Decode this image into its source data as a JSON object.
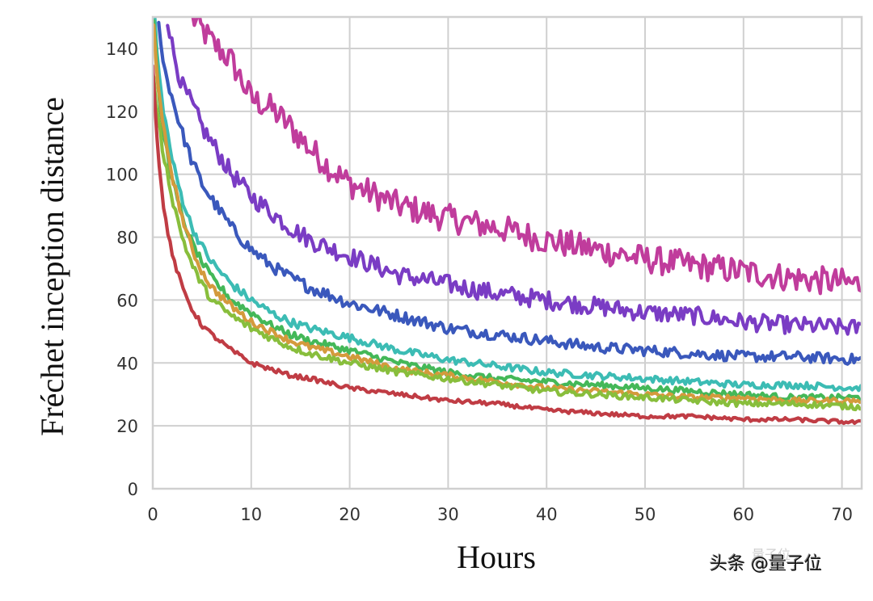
{
  "chart_data": {
    "type": "line",
    "title": "",
    "xlabel": "Hours",
    "ylabel": "Fréchet inception distance",
    "xlim": [
      0,
      72
    ],
    "ylim": [
      0,
      150
    ],
    "xticks": [
      0,
      10,
      20,
      30,
      40,
      50,
      60,
      70
    ],
    "yticks": [
      0,
      20,
      40,
      60,
      80,
      100,
      120,
      140
    ],
    "grid": true,
    "legend": "none",
    "series": [
      {
        "name": "series-magenta",
        "color": "#c03c9c",
        "noise": 4.5,
        "x": [
          4,
          6,
          8,
          10,
          12,
          14,
          16,
          18,
          20,
          25,
          30,
          35,
          40,
          45,
          50,
          55,
          60,
          65,
          72
        ],
        "y": [
          150,
          142,
          136,
          124,
          121,
          115,
          108,
          102,
          97,
          90,
          86,
          83,
          79,
          76,
          73,
          71,
          69,
          67,
          65
        ]
      },
      {
        "name": "series-purple",
        "color": "#7a3cc4",
        "noise": 3,
        "x": [
          1.5,
          2,
          3,
          4,
          5,
          6,
          8,
          10,
          12,
          14,
          16,
          20,
          25,
          30,
          35,
          40,
          45,
          50,
          55,
          60,
          65,
          72
        ],
        "y": [
          150,
          140,
          128,
          122,
          115,
          110,
          100,
          93,
          88,
          83,
          79,
          74,
          68,
          65,
          62,
          60,
          58,
          56,
          55,
          53,
          52,
          51
        ]
      },
      {
        "name": "series-blue",
        "color": "#3a58bc",
        "noise": 2,
        "x": [
          0.6,
          1,
          2,
          3,
          4,
          5,
          6,
          8,
          10,
          12,
          14,
          16,
          20,
          25,
          30,
          35,
          40,
          45,
          50,
          55,
          60,
          65,
          72
        ],
        "y": [
          150,
          136,
          124,
          113,
          104,
          97,
          92,
          83,
          76,
          71,
          67,
          64,
          59,
          55,
          51,
          49,
          47,
          45,
          44,
          43,
          42,
          42,
          41
        ]
      },
      {
        "name": "series-teal",
        "color": "#3cbcb4",
        "noise": 1.4,
        "x": [
          0.2,
          0.5,
          1,
          2,
          3,
          4,
          5,
          6,
          8,
          10,
          12,
          14,
          16,
          20,
          25,
          30,
          35,
          40,
          45,
          50,
          55,
          60,
          65,
          72
        ],
        "y": [
          150,
          135,
          122,
          104,
          92,
          83,
          77,
          72,
          65,
          60,
          56,
          53,
          51,
          48,
          44,
          41,
          39,
          37,
          36,
          35,
          34,
          33,
          33,
          32
        ]
      },
      {
        "name": "series-green",
        "color": "#44b858",
        "noise": 1.3,
        "x": [
          0.1,
          0.5,
          1,
          2,
          3,
          4,
          5,
          6,
          8,
          10,
          12,
          14,
          16,
          20,
          25,
          30,
          35,
          40,
          45,
          50,
          55,
          60,
          65,
          72
        ],
        "y": [
          150,
          128,
          115,
          98,
          86,
          78,
          72,
          67,
          60,
          56,
          52,
          49,
          47,
          44,
          40,
          37,
          35,
          34,
          33,
          32,
          31,
          30,
          29,
          29
        ]
      },
      {
        "name": "series-orange",
        "color": "#d49a3c",
        "noise": 1.2,
        "x": [
          0.1,
          0.5,
          1,
          2,
          3,
          4,
          5,
          6,
          8,
          10,
          12,
          14,
          16,
          20,
          25,
          30,
          35,
          40,
          45,
          50,
          55,
          60,
          65,
          72
        ],
        "y": [
          148,
          128,
          116,
          99,
          86,
          76,
          69,
          64,
          58,
          53,
          50,
          47,
          45,
          42,
          38,
          36,
          34,
          32,
          31,
          30,
          29,
          29,
          28,
          28
        ]
      },
      {
        "name": "series-lime",
        "color": "#88be3c",
        "noise": 1.3,
        "x": [
          0.1,
          0.5,
          1,
          2,
          3,
          4,
          5,
          6,
          8,
          10,
          12,
          14,
          16,
          20,
          25,
          30,
          35,
          40,
          45,
          50,
          55,
          60,
          65,
          72
        ],
        "y": [
          130,
          118,
          108,
          92,
          80,
          71,
          65,
          60,
          55,
          51,
          48,
          45,
          43,
          40,
          37,
          35,
          33,
          31,
          30,
          29,
          28,
          27,
          27,
          26
        ]
      },
      {
        "name": "series-red",
        "color": "#c03c44",
        "noise": 0.9,
        "x": [
          0,
          0.3,
          0.6,
          1,
          1.5,
          2,
          3,
          4,
          5,
          6,
          8,
          10,
          12,
          14,
          16,
          20,
          25,
          30,
          35,
          40,
          45,
          50,
          55,
          60,
          65,
          72
        ],
        "y": [
          135,
          118,
          104,
          92,
          82,
          74,
          64,
          57,
          52,
          49,
          44,
          40,
          38,
          36,
          35,
          32,
          30,
          28,
          27,
          25,
          24,
          23,
          23,
          22,
          22,
          21
        ]
      }
    ]
  },
  "axes": {
    "x_title": "Hours",
    "y_title": "Fréchet inception distance",
    "x_tick_labels": [
      "0",
      "10",
      "20",
      "30",
      "40",
      "50",
      "60",
      "70"
    ],
    "y_tick_labels": [
      "0",
      "20",
      "40",
      "60",
      "80",
      "100",
      "120",
      "140"
    ]
  },
  "watermark": {
    "text": "头条 @量子位",
    "faint_text": "量子位"
  },
  "style": {
    "grid_color": "#d0d0d0",
    "background": "#ffffff"
  }
}
